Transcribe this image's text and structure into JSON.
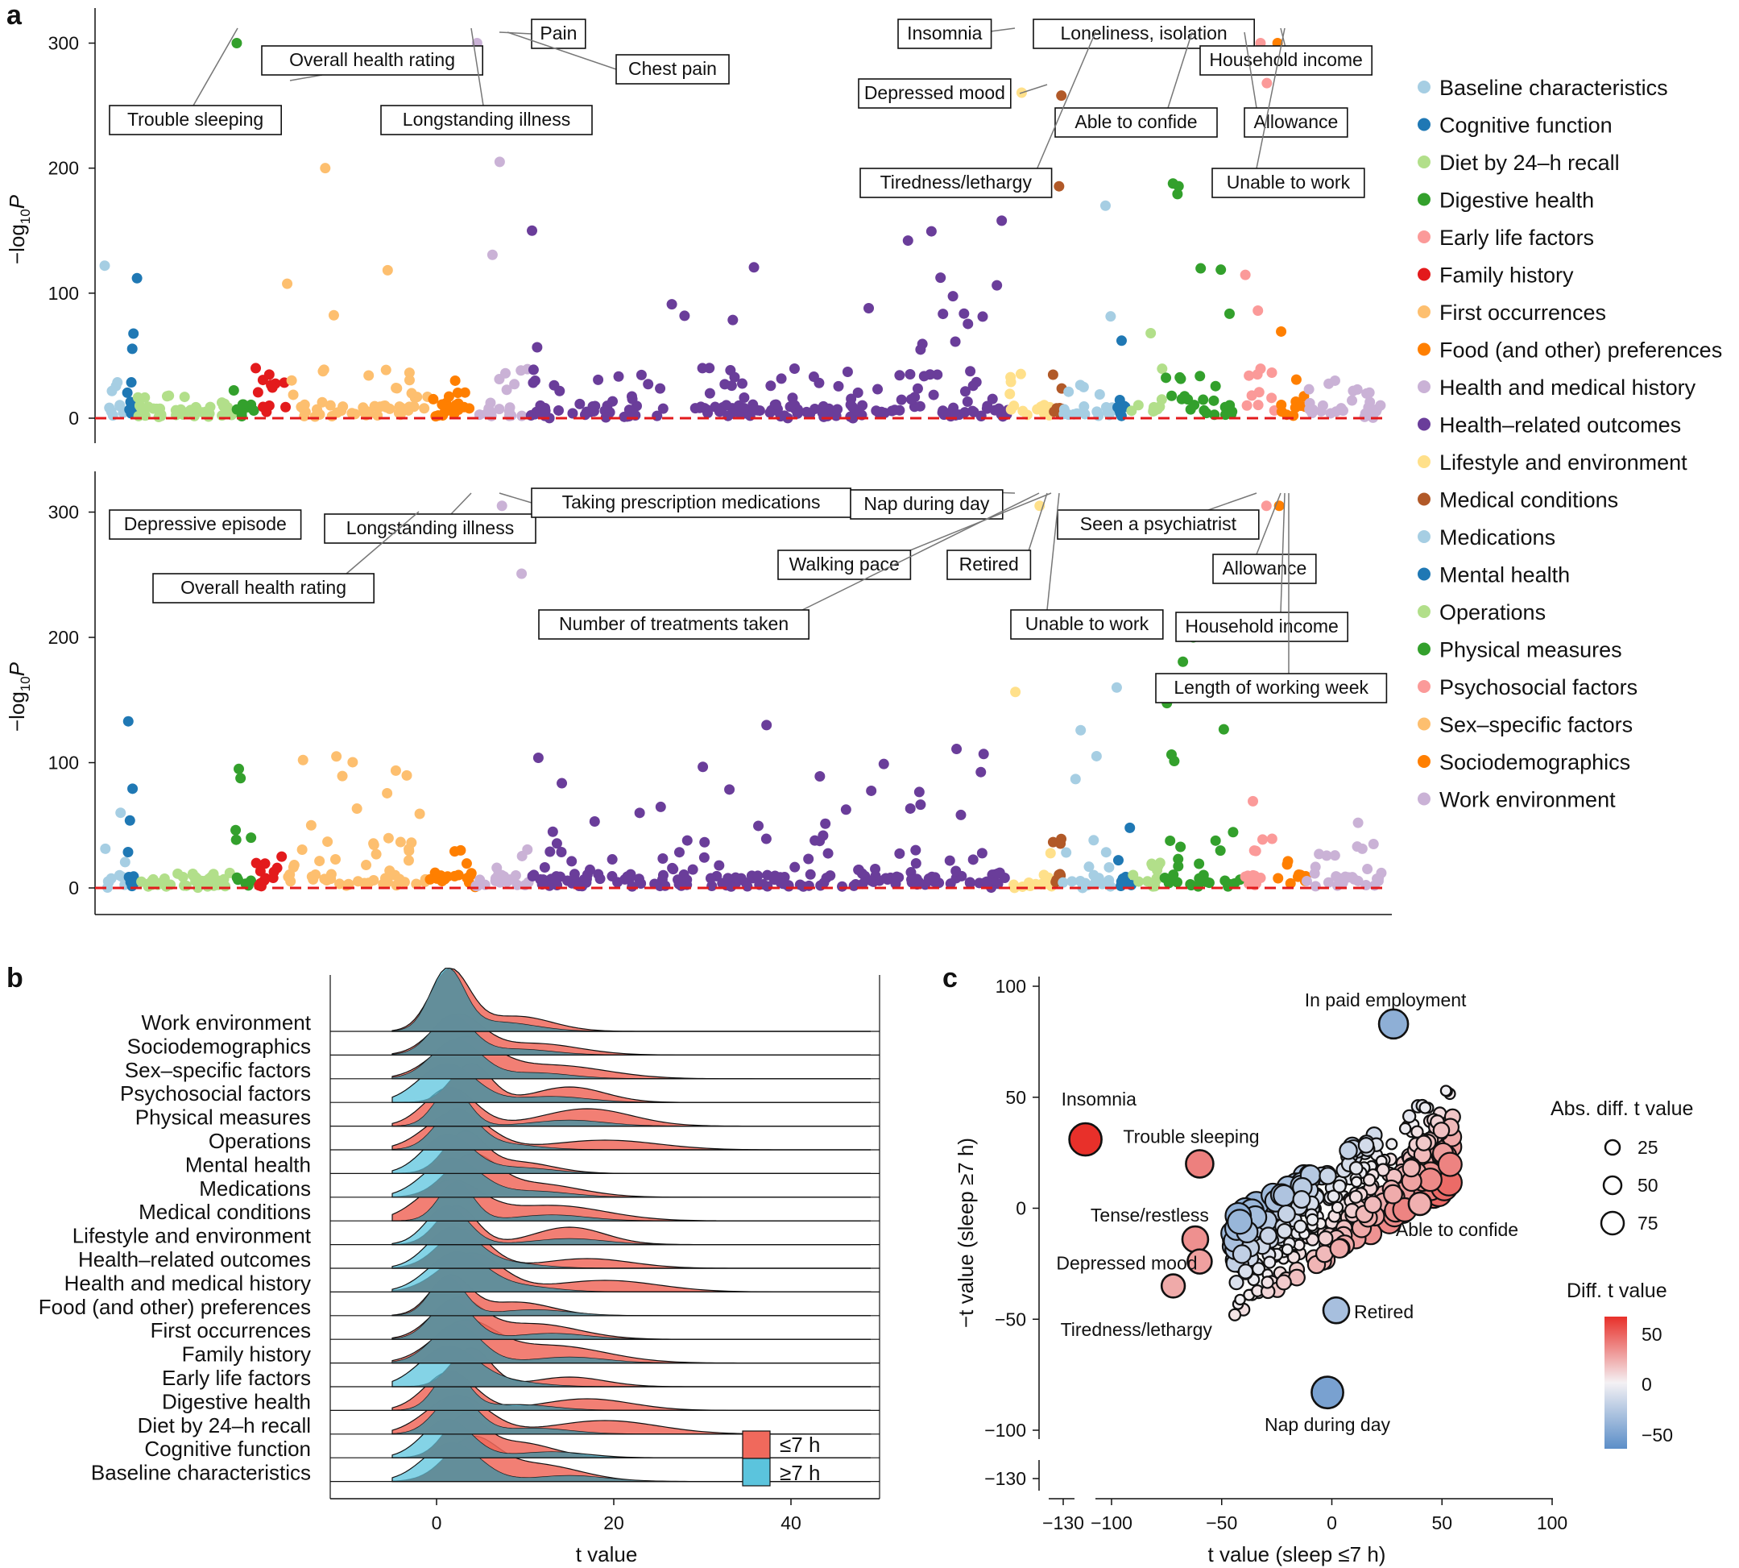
{
  "panel_letters": [
    "a",
    "b",
    "c"
  ],
  "legend_a": {
    "items": [
      {
        "label": "Baseline characteristics",
        "color": "#a6cee3"
      },
      {
        "label": "Cognitive function",
        "color": "#1f78b4"
      },
      {
        "label": "Diet by 24–h recall",
        "color": "#b2df8a"
      },
      {
        "label": "Digestive health",
        "color": "#33a02c"
      },
      {
        "label": "Early life factors",
        "color": "#fb9a99"
      },
      {
        "label": "Family history",
        "color": "#e31a1c"
      },
      {
        "label": "First occurrences",
        "color": "#fdbf6f"
      },
      {
        "label": "Food (and other) preferences",
        "color": "#ff7f00"
      },
      {
        "label": "Health and medical history",
        "color": "#cab2d6"
      },
      {
        "label": "Health–related outcomes",
        "color": "#6a3d9a"
      },
      {
        "label": "Lifestyle and environment",
        "color": "#ffe08a"
      },
      {
        "label": "Medical conditions",
        "color": "#b15928"
      },
      {
        "label": "Medications",
        "color": "#a6cee3"
      },
      {
        "label": "Mental health",
        "color": "#1f78b4"
      },
      {
        "label": "Operations",
        "color": "#b2df8a"
      },
      {
        "label": "Physical measures",
        "color": "#33a02c"
      },
      {
        "label": "Psychosocial factors",
        "color": "#fb9a99"
      },
      {
        "label": "Sex–specific factors",
        "color": "#fdbf6f"
      },
      {
        "label": "Sociodemographics",
        "color": "#ff7f00"
      },
      {
        "label": "Work environment",
        "color": "#cab2d6"
      }
    ]
  },
  "chart_data": [
    {
      "type": "scatter",
      "subtype": "manhattan",
      "panel": "a-top",
      "ylabel": "−log10P",
      "ylim": [
        0,
        310
      ],
      "yticks": [
        "0",
        "100",
        "200",
        "300"
      ],
      "threshold": 5,
      "category_order": [
        "Baseline characteristics",
        "Cognitive function",
        "Diet by 24–h recall",
        "Digestive health",
        "Family history",
        "Sex–specific factors",
        "Food (and other) preferences",
        "Health and medical history",
        "Health–related outcomes",
        "Lifestyle and environment",
        "Medical conditions",
        "Medications",
        "Mental health",
        "Operations",
        "Physical measures",
        "Psychosocial factors",
        "Sociodemographics",
        "Work environment"
      ],
      "category_peaks": [
        122,
        112,
        18,
        300,
        40,
        200,
        30,
        300,
        158,
        300,
        258,
        170,
        62,
        68,
        190,
        300,
        300,
        30
      ],
      "annotations": [
        "Trouble sleeping",
        "Overall health rating",
        "Longstanding illness",
        "Pain",
        "Chest pain",
        "Insomnia",
        "Loneliness, isolation",
        "Household income",
        "Depressed mood",
        "Able to confide",
        "Allowance",
        "Tiredness/lethargy",
        "Unable to work"
      ]
    },
    {
      "type": "scatter",
      "subtype": "manhattan",
      "panel": "a-bottom",
      "ylabel": "−log10P",
      "ylim": [
        0,
        310
      ],
      "yticks": [
        "0",
        "100",
        "200",
        "300"
      ],
      "threshold": 5,
      "category_peaks": [
        60,
        133,
        12,
        95,
        25,
        105,
        30,
        305,
        130,
        305,
        205,
        160,
        48,
        20,
        200,
        305,
        305,
        52
      ],
      "annotations": [
        "Depressive episode",
        "Longstanding illness",
        "Taking prescription medications",
        "Nap during day",
        "Overall health rating",
        "Walking pace",
        "Retired",
        "Seen a psychiatrist",
        "Number of treatments taken",
        "Allowance",
        "Unable to work",
        "Household income",
        "Length of working week"
      ]
    },
    {
      "type": "area",
      "subtype": "ridgeline",
      "panel": "b",
      "xlabel": "t value",
      "xlim": [
        -12,
        50
      ],
      "xticks": [
        "0",
        "20",
        "40"
      ],
      "categories": [
        "Work environment",
        "Sociodemographics",
        "Sex–specific factors",
        "Psychosocial factors",
        "Physical measures",
        "Operations",
        "Mental health",
        "Medications",
        "Medical conditions",
        "Lifestyle and environment",
        "Health–related outcomes",
        "Health and medical history",
        "Food (and other) preferences",
        "First occurrences",
        "Family history",
        "Early life factors",
        "Digestive health",
        "Diet by 24–h recall",
        "Cognitive function",
        "Baseline characteristics"
      ],
      "legend": [
        {
          "label": "≤7 h",
          "color": "#f0695c"
        },
        {
          "label": "≥7 h",
          "color": "#5bc4dd"
        }
      ]
    },
    {
      "type": "scatter",
      "panel": "c",
      "xlabel": "t value (sleep ≤7 h)",
      "ylabel": "−t value (sleep ≥7 h)",
      "xlim": [
        -130,
        100
      ],
      "ylim": [
        -130,
        100
      ],
      "xticks": [
        "−130",
        "−100",
        "−50",
        "0",
        "50",
        "100"
      ],
      "yticks": [
        "−130",
        "−100",
        "−50",
        "0",
        "50",
        "100"
      ],
      "labeled_points": [
        {
          "label": "In paid employment",
          "x": 28,
          "y": 83,
          "diff": -40
        },
        {
          "label": "Insomnia",
          "x": -112,
          "y": 31,
          "diff": 62
        },
        {
          "label": "Trouble sleeping",
          "x": -60,
          "y": 20,
          "diff": 35
        },
        {
          "label": "Tense/restless",
          "x": -62,
          "y": -14,
          "diff": 30
        },
        {
          "label": "Depressed mood",
          "x": -60,
          "y": -24,
          "diff": 25
        },
        {
          "label": "Tiredness/lethargy",
          "x": -72,
          "y": -35,
          "diff": 22
        },
        {
          "label": "Able to confide",
          "x": 40,
          "y": 2,
          "diff": 20
        },
        {
          "label": "Retired",
          "x": 2,
          "y": -46,
          "diff": -30
        },
        {
          "label": "Nap during day",
          "x": -2,
          "y": -83,
          "diff": -48
        }
      ],
      "size_legend": {
        "title": "Abs. diff. t value",
        "labels": [
          "25",
          "50",
          "75"
        ]
      },
      "color_legend": {
        "title": "Diff. t value",
        "labels": [
          "50",
          "0",
          "−50"
        ]
      }
    }
  ],
  "panel_b_legend_labels": [
    "≤7 h",
    "≥7 h"
  ]
}
